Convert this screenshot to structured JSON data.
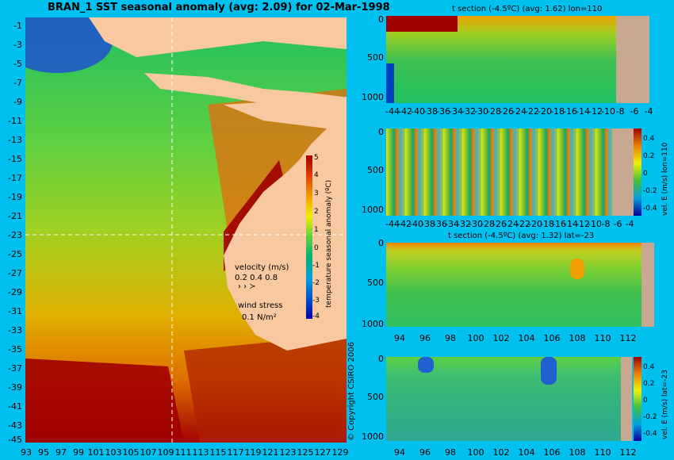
{
  "title": "BRAN_1  SST seasonal anomaly (avg: 2.09) for 02-Mar-1998",
  "map": {
    "lat_labels": [
      "-1",
      "-3",
      "-5",
      "-7",
      "-9",
      "-11",
      "-13",
      "-15",
      "-17",
      "-19",
      "-21",
      "-23",
      "-25",
      "-27",
      "-29",
      "-31",
      "-33",
      "-35",
      "-37",
      "-39",
      "-41",
      "-43",
      "-45"
    ],
    "lon_labels": [
      "93",
      "95",
      "97",
      "99",
      "101",
      "103",
      "105",
      "107",
      "109",
      "111",
      "113",
      "115",
      "117",
      "119",
      "121",
      "123",
      "125",
      "127",
      "129"
    ],
    "colorbar": {
      "label": "temperature seasonal anomaly (ºC)",
      "ticks": [
        "5",
        "4",
        "3",
        "2",
        "1",
        "0",
        "-1",
        "-2",
        "-3",
        "-4"
      ]
    },
    "velocity_legend": {
      "title": "velocity (m/s)",
      "scale": "0.2 0.4 0.8"
    },
    "wind_legend": {
      "title": "wind stress",
      "value": "0.1 N/m²"
    },
    "copyright": "© Copyright CSIRO 2006",
    "colors": {
      "land": "#f8c8a0",
      "ocean_bg": "#00c0f0",
      "high": "#a00000",
      "low": "#0040c0"
    }
  },
  "sections": [
    {
      "title": "t section (-4.5ºC) (avg: 1.62) lon=110",
      "y_ticks": [
        "0",
        "500",
        "1000"
      ],
      "x_ticks": [
        "-44",
        "-42",
        "-40",
        "-38",
        "-36",
        "-34",
        "-32",
        "-30",
        "-28",
        "-26",
        "-24",
        "-22",
        "-20",
        "-18",
        "-16",
        "-14",
        "-12",
        "-10",
        "-8",
        "-6",
        "-4"
      ]
    },
    {
      "title": "",
      "y_ticks": [
        "0",
        "500",
        "1000"
      ],
      "x_ticks": [
        "-44",
        "-42",
        "-40",
        "-38",
        "-36",
        "-34",
        "-32",
        "-30",
        "-28",
        "-26",
        "-24",
        "-22",
        "-20",
        "-18",
        "-16",
        "-14",
        "-12",
        "-10",
        "-8",
        "-6",
        "-4"
      ],
      "colorbar_ticks": [
        "0.4",
        "0.2",
        "0",
        "-0.2",
        "-0.4"
      ],
      "colorbar_label": "vel. E (m/s) lon=110"
    },
    {
      "title": "t section (-4.5ºC) (avg: 1.32) lat=-23",
      "y_ticks": [
        "0",
        "500",
        "1000"
      ],
      "x_ticks": [
        "94",
        "96",
        "98",
        "100",
        "102",
        "104",
        "106",
        "108",
        "110",
        "112"
      ]
    },
    {
      "title": "",
      "y_ticks": [
        "0",
        "500",
        "1000"
      ],
      "x_ticks": [
        "94",
        "96",
        "98",
        "100",
        "102",
        "104",
        "106",
        "108",
        "110",
        "112"
      ],
      "colorbar_ticks": [
        "0.4",
        "0.2",
        "0",
        "-0.2",
        "-0.4"
      ],
      "colorbar_label": "vel. E (m/s) lat=-23"
    }
  ]
}
